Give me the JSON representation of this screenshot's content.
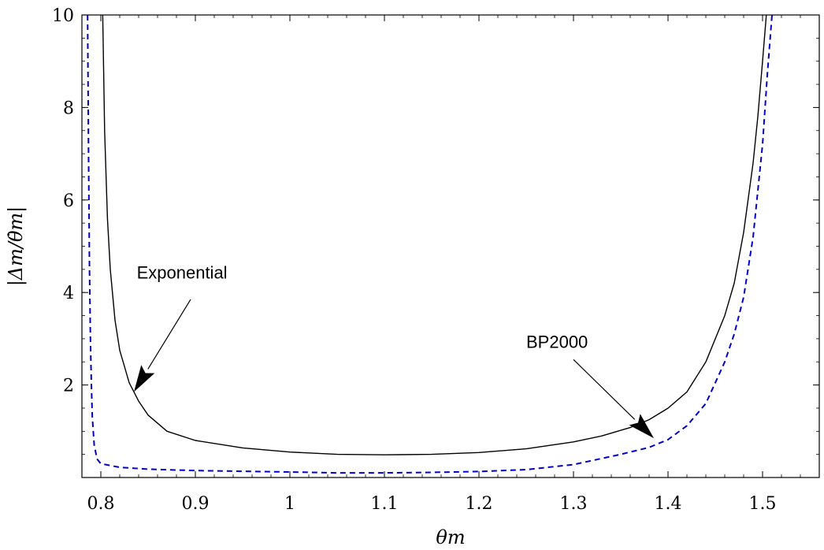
{
  "chart_data": {
    "type": "line",
    "xlabel": "θm",
    "ylabel": "|Δm/θ̇m|",
    "xlim": [
      0.78,
      1.56
    ],
    "ylim": [
      0,
      10
    ],
    "x_ticks": [
      {
        "value": 0.8,
        "label": "0.8"
      },
      {
        "value": 0.9,
        "label": "0.9"
      },
      {
        "value": 1.0,
        "label": "1"
      },
      {
        "value": 1.1,
        "label": "1.1"
      },
      {
        "value": 1.2,
        "label": "1.2"
      },
      {
        "value": 1.3,
        "label": "1.3"
      },
      {
        "value": 1.4,
        "label": "1.4"
      },
      {
        "value": 1.5,
        "label": "1.5"
      }
    ],
    "y_ticks": [
      {
        "value": 2,
        "label": "2"
      },
      {
        "value": 4,
        "label": "4"
      },
      {
        "value": 6,
        "label": "6"
      },
      {
        "value": 8,
        "label": "8"
      },
      {
        "value": 10,
        "label": "10"
      }
    ],
    "grid": false,
    "series": [
      {
        "name": "Exponential",
        "color": "#000000",
        "style": "solid",
        "points": [
          [
            0.802,
            10.0
          ],
          [
            0.804,
            7.5
          ],
          [
            0.807,
            5.6
          ],
          [
            0.81,
            4.5
          ],
          [
            0.815,
            3.4
          ],
          [
            0.82,
            2.75
          ],
          [
            0.83,
            2.05
          ],
          [
            0.84,
            1.65
          ],
          [
            0.85,
            1.35
          ],
          [
            0.87,
            1.0
          ],
          [
            0.9,
            0.8
          ],
          [
            0.95,
            0.64
          ],
          [
            1.0,
            0.55
          ],
          [
            1.05,
            0.5
          ],
          [
            1.1,
            0.49
          ],
          [
            1.15,
            0.5
          ],
          [
            1.2,
            0.54
          ],
          [
            1.25,
            0.62
          ],
          [
            1.3,
            0.77
          ],
          [
            1.33,
            0.9
          ],
          [
            1.36,
            1.08
          ],
          [
            1.38,
            1.25
          ],
          [
            1.4,
            1.5
          ],
          [
            1.42,
            1.85
          ],
          [
            1.44,
            2.5
          ],
          [
            1.46,
            3.5
          ],
          [
            1.47,
            4.2
          ],
          [
            1.48,
            5.3
          ],
          [
            1.49,
            6.8
          ],
          [
            1.495,
            7.8
          ],
          [
            1.5,
            9.0
          ],
          [
            1.504,
            10.0
          ]
        ]
      },
      {
        "name": "BP2000",
        "color": "#0000cc",
        "style": "dashed",
        "points": [
          [
            0.786,
            10.0
          ],
          [
            0.787,
            7.0
          ],
          [
            0.788,
            4.5
          ],
          [
            0.789,
            3.0
          ],
          [
            0.79,
            2.0
          ],
          [
            0.791,
            1.3
          ],
          [
            0.793,
            0.7
          ],
          [
            0.796,
            0.4
          ],
          [
            0.8,
            0.3
          ],
          [
            0.82,
            0.22
          ],
          [
            0.85,
            0.18
          ],
          [
            0.9,
            0.15
          ],
          [
            1.0,
            0.12
          ],
          [
            1.05,
            0.1
          ],
          [
            1.1,
            0.1
          ],
          [
            1.15,
            0.11
          ],
          [
            1.2,
            0.13
          ],
          [
            1.25,
            0.17
          ],
          [
            1.3,
            0.28
          ],
          [
            1.35,
            0.5
          ],
          [
            1.38,
            0.65
          ],
          [
            1.4,
            0.82
          ],
          [
            1.42,
            1.12
          ],
          [
            1.44,
            1.6
          ],
          [
            1.46,
            2.5
          ],
          [
            1.47,
            3.1
          ],
          [
            1.48,
            3.9
          ],
          [
            1.49,
            5.2
          ],
          [
            1.5,
            7.2
          ],
          [
            1.505,
            8.7
          ],
          [
            1.51,
            10.0
          ]
        ]
      }
    ],
    "annotations": [
      {
        "text": "Exponential",
        "label_x": 0.838,
        "label_y": 4.3,
        "arrow_from": [
          0.895,
          3.85
        ],
        "arrow_to": [
          0.835,
          1.85
        ]
      },
      {
        "text": "BP2000",
        "label_x": 1.25,
        "label_y": 2.8,
        "arrow_from": [
          1.3,
          2.55
        ],
        "arrow_to": [
          1.385,
          0.85
        ]
      }
    ]
  }
}
